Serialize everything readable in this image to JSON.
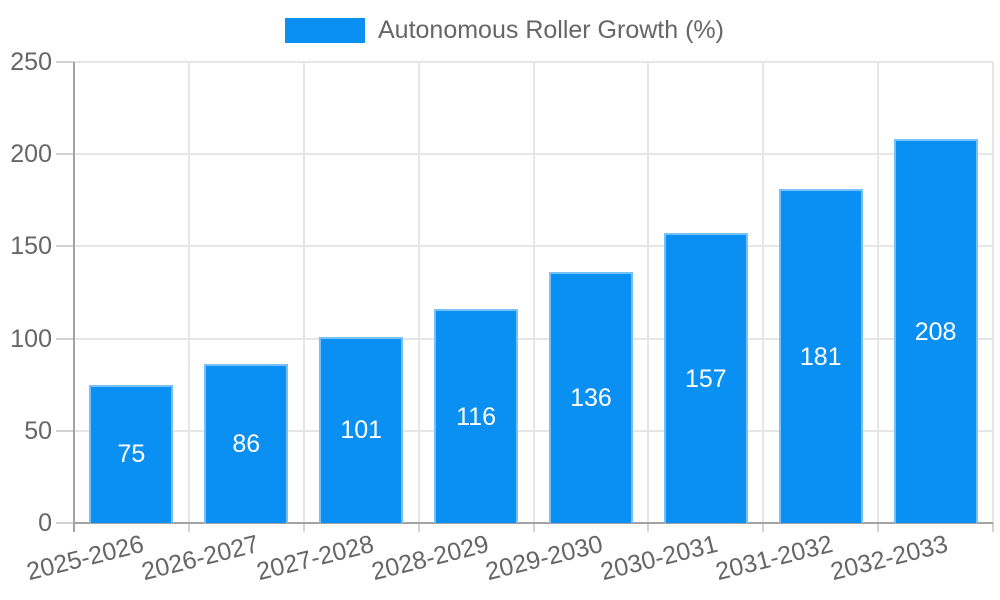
{
  "legend": {
    "label": "Autonomous Roller Growth (%)"
  },
  "chart_data": {
    "type": "bar",
    "title": "",
    "series_name": "Autonomous Roller Growth (%)",
    "categories": [
      "2025-2026",
      "2026-2027",
      "2027-2028",
      "2028-2029",
      "2029-2030",
      "2030-2031",
      "2031-2032",
      "2032-2033"
    ],
    "values": [
      75,
      86,
      101,
      116,
      136,
      157,
      181,
      208
    ],
    "xlabel": "",
    "ylabel": "",
    "ylim": [
      0,
      250
    ],
    "yticks": [
      0,
      50,
      100,
      150,
      200,
      250
    ],
    "grid": true,
    "legend_position": "top",
    "value_labels": "inside-center",
    "x_label_rotation_deg": -14,
    "colors": {
      "bar_fill": "#0a8ff2",
      "bar_edge_highlight": "rgba(255,255,255,0.45)",
      "value_label_text": "#ffffff",
      "axis_text": "#666666",
      "grid_line": "#e6e6e6",
      "axis_line": "#a3a3a3",
      "tick_mark": "#d2d2d2",
      "background": "#ffffff"
    }
  }
}
